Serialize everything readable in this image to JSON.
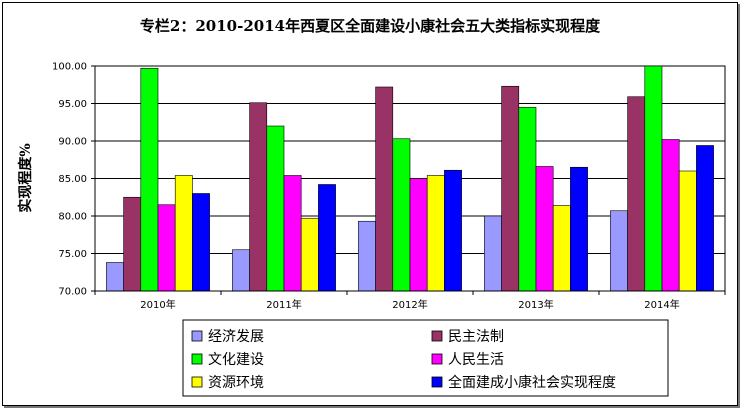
{
  "chart_data": {
    "type": "bar",
    "title": "专栏2：2010-2014年西夏区全面建设小康社会五大类指标实现程度",
    "ylabel": "实现程度%",
    "xlabel": "",
    "ylim": [
      70,
      100
    ],
    "yticks": [
      "70.00",
      "75.00",
      "80.00",
      "85.00",
      "90.00",
      "95.00",
      "100.00"
    ],
    "ytick_values": [
      70,
      75,
      80,
      85,
      90,
      95,
      100
    ],
    "categories": [
      "2010年",
      "2011年",
      "2012年",
      "2013年",
      "2014年"
    ],
    "grid": true,
    "legend_position": "bottom",
    "series": [
      {
        "name": "经济发展",
        "color": "#9999ff",
        "values": [
          73.8,
          75.5,
          79.3,
          80.0,
          80.7
        ]
      },
      {
        "name": "民主法制",
        "color": "#993366",
        "values": [
          82.5,
          95.1,
          97.2,
          97.3,
          95.9
        ]
      },
      {
        "name": "文化建设",
        "color": "#00ff00",
        "values": [
          99.7,
          92.0,
          90.3,
          94.5,
          100.0
        ]
      },
      {
        "name": "人民生活",
        "color": "#ff00ff",
        "values": [
          81.5,
          85.4,
          85.0,
          86.6,
          90.2
        ]
      },
      {
        "name": "资源环境",
        "color": "#ffff00",
        "values": [
          85.4,
          79.7,
          85.4,
          81.4,
          86.0
        ]
      },
      {
        "name": "全面建成小康社会实现程度",
        "color": "#0000ff",
        "values": [
          83.0,
          84.2,
          86.1,
          86.5,
          89.4
        ]
      }
    ]
  }
}
